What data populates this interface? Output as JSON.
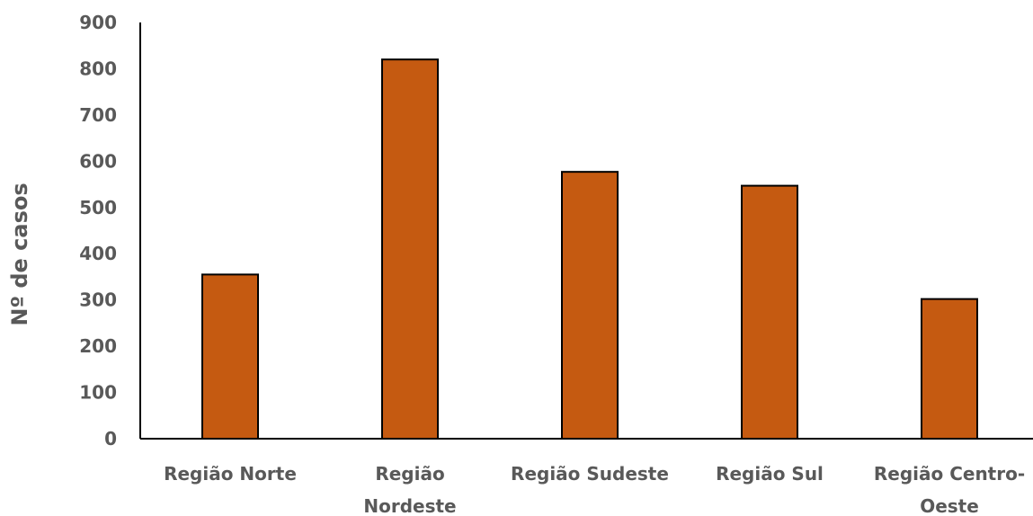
{
  "chart_data": {
    "type": "bar",
    "categories": [
      [
        "Região Norte"
      ],
      [
        "Região",
        "Nordeste"
      ],
      [
        "Região Sudeste"
      ],
      [
        "Região Sul"
      ],
      [
        "Região Centro-",
        "Oeste"
      ]
    ],
    "values": [
      355,
      820,
      577,
      547,
      302
    ],
    "title": "",
    "xlabel": "",
    "ylabel": "Nº de casos",
    "ylim": [
      0,
      900
    ],
    "yticks": [
      "0",
      "100",
      "200",
      "300",
      "400",
      "500",
      "600",
      "700",
      "800",
      "900"
    ],
    "bar_color": "#C55A11",
    "grid": false,
    "legend": "none"
  }
}
